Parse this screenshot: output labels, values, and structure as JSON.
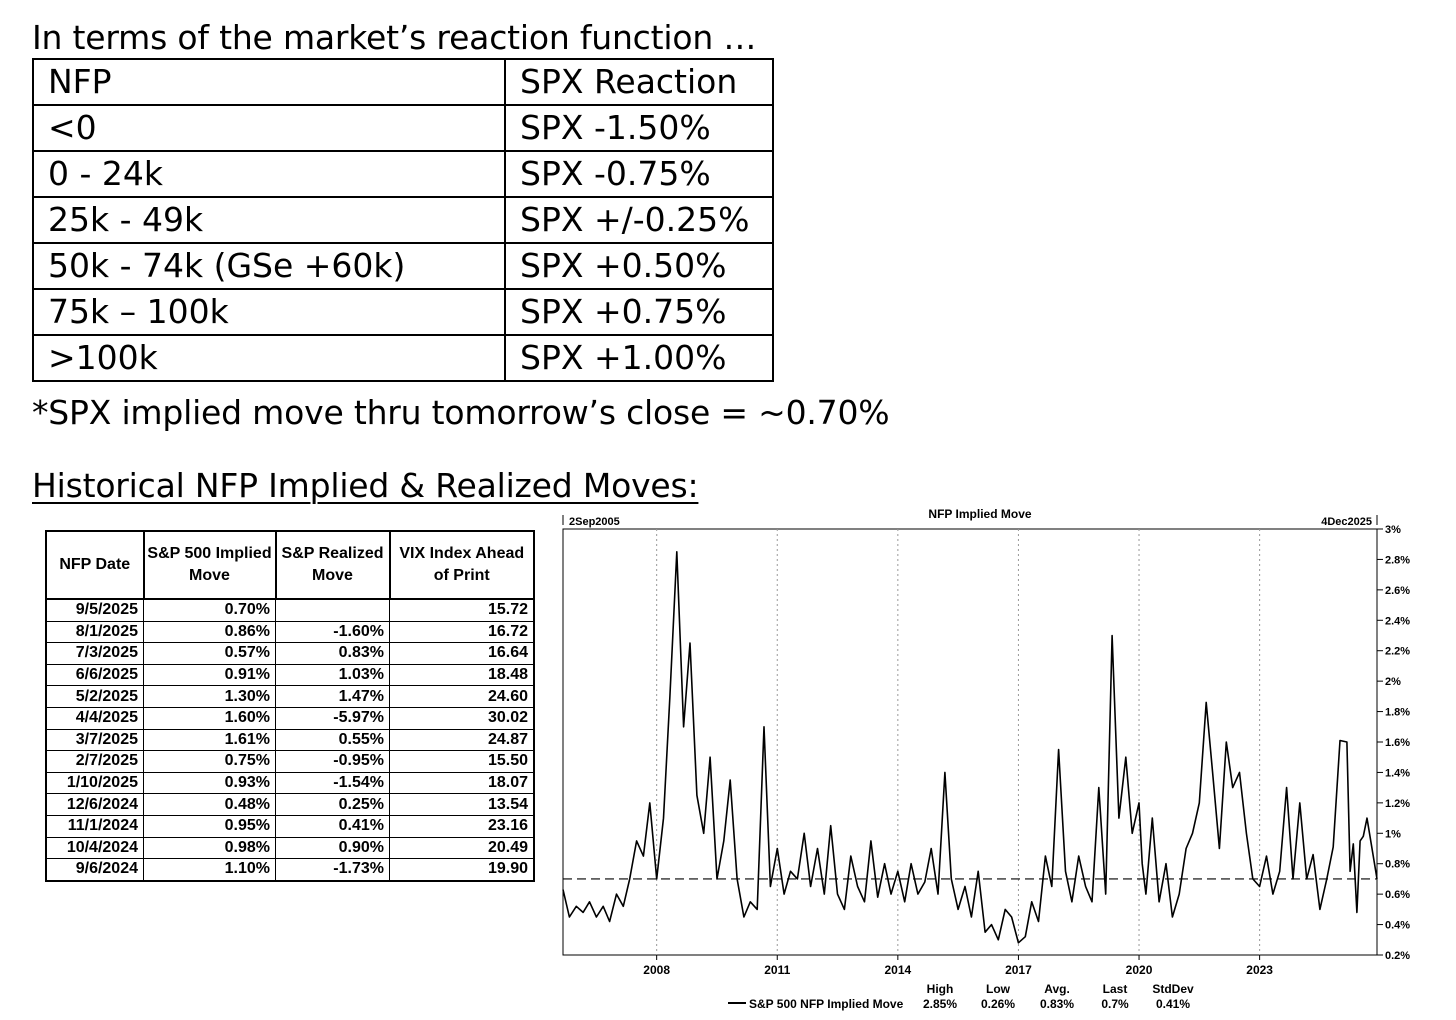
{
  "heading": {
    "title": "In terms of the market’s reaction function …",
    "note": "*SPX implied move thru tomorrow’s close = ~0.70%",
    "historical": "Historical NFP Implied & Realized Moves:"
  },
  "reaction_table": {
    "headers": [
      "NFP",
      "SPX Reaction"
    ],
    "rows": [
      [
        "<0",
        "SPX -1.50%"
      ],
      [
        "0 - 24k",
        "SPX -0.75%"
      ],
      [
        "25k - 49k",
        "SPX +/-0.25%"
      ],
      [
        "50k - 74k  (GSe +60k)",
        "SPX +0.50%"
      ],
      [
        "75k – 100k",
        "SPX +0.75%"
      ],
      [
        ">100k",
        "SPX +1.00%"
      ]
    ]
  },
  "history_table": {
    "headers": [
      "NFP Date",
      "S&P 500 Implied Move",
      "S&P Realized Move",
      "VIX Index Ahead of Print"
    ],
    "rows": [
      [
        "9/5/2025",
        "0.70%",
        "",
        "15.72"
      ],
      [
        "8/1/2025",
        "0.86%",
        "-1.60%",
        "16.72"
      ],
      [
        "7/3/2025",
        "0.57%",
        "0.83%",
        "16.64"
      ],
      [
        "6/6/2025",
        "0.91%",
        "1.03%",
        "18.48"
      ],
      [
        "5/2/2025",
        "1.30%",
        "1.47%",
        "24.60"
      ],
      [
        "4/4/2025",
        "1.60%",
        "-5.97%",
        "30.02"
      ],
      [
        "3/7/2025",
        "1.61%",
        "0.55%",
        "24.87"
      ],
      [
        "2/7/2025",
        "0.75%",
        "-0.95%",
        "15.50"
      ],
      [
        "1/10/2025",
        "0.93%",
        "-1.54%",
        "18.07"
      ],
      [
        "12/6/2024",
        "0.48%",
        "0.25%",
        "13.54"
      ],
      [
        "11/1/2024",
        "0.95%",
        "0.41%",
        "23.16"
      ],
      [
        "10/4/2024",
        "0.98%",
        "0.90%",
        "20.49"
      ],
      [
        "9/6/2024",
        "1.10%",
        "-1.73%",
        "19.90"
      ]
    ]
  },
  "chart_data": {
    "type": "line",
    "title": "NFP Implied Move",
    "start_label": "2Sep2005",
    "end_label": "4Dec2025",
    "xlim": [
      2005.67,
      2025.92
    ],
    "ylim": [
      0.2,
      3.0
    ],
    "x_ticks": [
      2008,
      2011,
      2014,
      2017,
      2020,
      2023
    ],
    "y_ticks": [
      0.2,
      0.4,
      0.6,
      0.8,
      1.0,
      1.2,
      1.4,
      1.6,
      1.8,
      2.0,
      2.2,
      2.4,
      2.6,
      2.8,
      3.0
    ],
    "y_tick_labels": [
      "0.2%",
      "0.4%",
      "0.6%",
      "0.8%",
      "1%",
      "1.2%",
      "1.4%",
      "1.6%",
      "1.8%",
      "2%",
      "2.2%",
      "2.4%",
      "2.6%",
      "2.8%",
      "3%"
    ],
    "reference_line": 0.7,
    "grid": "vertical dotted at year ticks",
    "series": [
      {
        "name": "S&P 500 NFP Implied Move",
        "color": "#000000",
        "x": [
          2005.67,
          2005.83,
          2006.0,
          2006.17,
          2006.33,
          2006.5,
          2006.67,
          2006.83,
          2007.0,
          2007.17,
          2007.33,
          2007.5,
          2007.67,
          2007.83,
          2008.0,
          2008.17,
          2008.33,
          2008.5,
          2008.67,
          2008.83,
          2009.0,
          2009.17,
          2009.33,
          2009.5,
          2009.67,
          2009.83,
          2010.0,
          2010.17,
          2010.33,
          2010.5,
          2010.67,
          2010.83,
          2011.0,
          2011.17,
          2011.33,
          2011.5,
          2011.67,
          2011.83,
          2012.0,
          2012.17,
          2012.33,
          2012.5,
          2012.67,
          2012.83,
          2013.0,
          2013.17,
          2013.33,
          2013.5,
          2013.67,
          2013.83,
          2014.0,
          2014.17,
          2014.33,
          2014.5,
          2014.67,
          2014.83,
          2015.0,
          2015.17,
          2015.33,
          2015.5,
          2015.67,
          2015.83,
          2016.0,
          2016.17,
          2016.33,
          2016.5,
          2016.67,
          2016.83,
          2017.0,
          2017.17,
          2017.33,
          2017.5,
          2017.67,
          2017.83,
          2018.0,
          2018.17,
          2018.33,
          2018.5,
          2018.67,
          2018.83,
          2019.0,
          2019.17,
          2019.33,
          2019.5,
          2019.67,
          2019.83,
          2020.0,
          2020.08,
          2020.17,
          2020.33,
          2020.5,
          2020.67,
          2020.83,
          2021.0,
          2021.17,
          2021.33,
          2021.5,
          2021.67,
          2021.83,
          2022.0,
          2022.17,
          2022.33,
          2022.5,
          2022.67,
          2022.83,
          2023.0,
          2023.17,
          2023.33,
          2023.5,
          2023.67,
          2023.83,
          2024.0,
          2024.17,
          2024.33,
          2024.5,
          2024.67,
          2024.83,
          2025.0,
          2025.17,
          2025.25,
          2025.33,
          2025.42,
          2025.5,
          2025.58,
          2025.67,
          2025.92
        ],
        "y": [
          0.63,
          0.45,
          0.52,
          0.48,
          0.55,
          0.45,
          0.52,
          0.42,
          0.6,
          0.52,
          0.7,
          0.95,
          0.85,
          1.2,
          0.7,
          1.1,
          1.9,
          2.85,
          1.7,
          2.25,
          1.25,
          1.0,
          1.5,
          0.7,
          0.95,
          1.35,
          0.7,
          0.45,
          0.55,
          0.5,
          1.7,
          0.65,
          0.9,
          0.6,
          0.75,
          0.7,
          1.0,
          0.65,
          0.9,
          0.6,
          1.05,
          0.6,
          0.5,
          0.85,
          0.65,
          0.55,
          0.95,
          0.58,
          0.8,
          0.6,
          0.75,
          0.55,
          0.8,
          0.6,
          0.68,
          0.9,
          0.6,
          1.4,
          0.7,
          0.5,
          0.65,
          0.45,
          0.75,
          0.35,
          0.4,
          0.3,
          0.5,
          0.45,
          0.28,
          0.32,
          0.55,
          0.42,
          0.85,
          0.65,
          1.55,
          0.75,
          0.55,
          0.85,
          0.65,
          0.55,
          1.3,
          0.6,
          2.3,
          1.1,
          1.5,
          1.0,
          1.2,
          0.8,
          0.6,
          1.1,
          0.55,
          0.8,
          0.45,
          0.6,
          0.9,
          1.0,
          1.2,
          1.86,
          1.4,
          0.9,
          1.6,
          1.3,
          1.4,
          1.0,
          0.7,
          0.65,
          0.85,
          0.6,
          0.75,
          1.3,
          0.7,
          1.2,
          0.7,
          0.86,
          0.5,
          0.7,
          0.91,
          1.61,
          1.6,
          0.75,
          0.93,
          0.48,
          0.95,
          0.98,
          1.1,
          0.7
        ]
      }
    ],
    "stats": {
      "headers": [
        "High",
        "Low",
        "Avg.",
        "Last",
        "StdDev"
      ],
      "values": [
        "2.85%",
        "0.26%",
        "0.83%",
        "0.7%",
        "0.41%"
      ]
    }
  }
}
